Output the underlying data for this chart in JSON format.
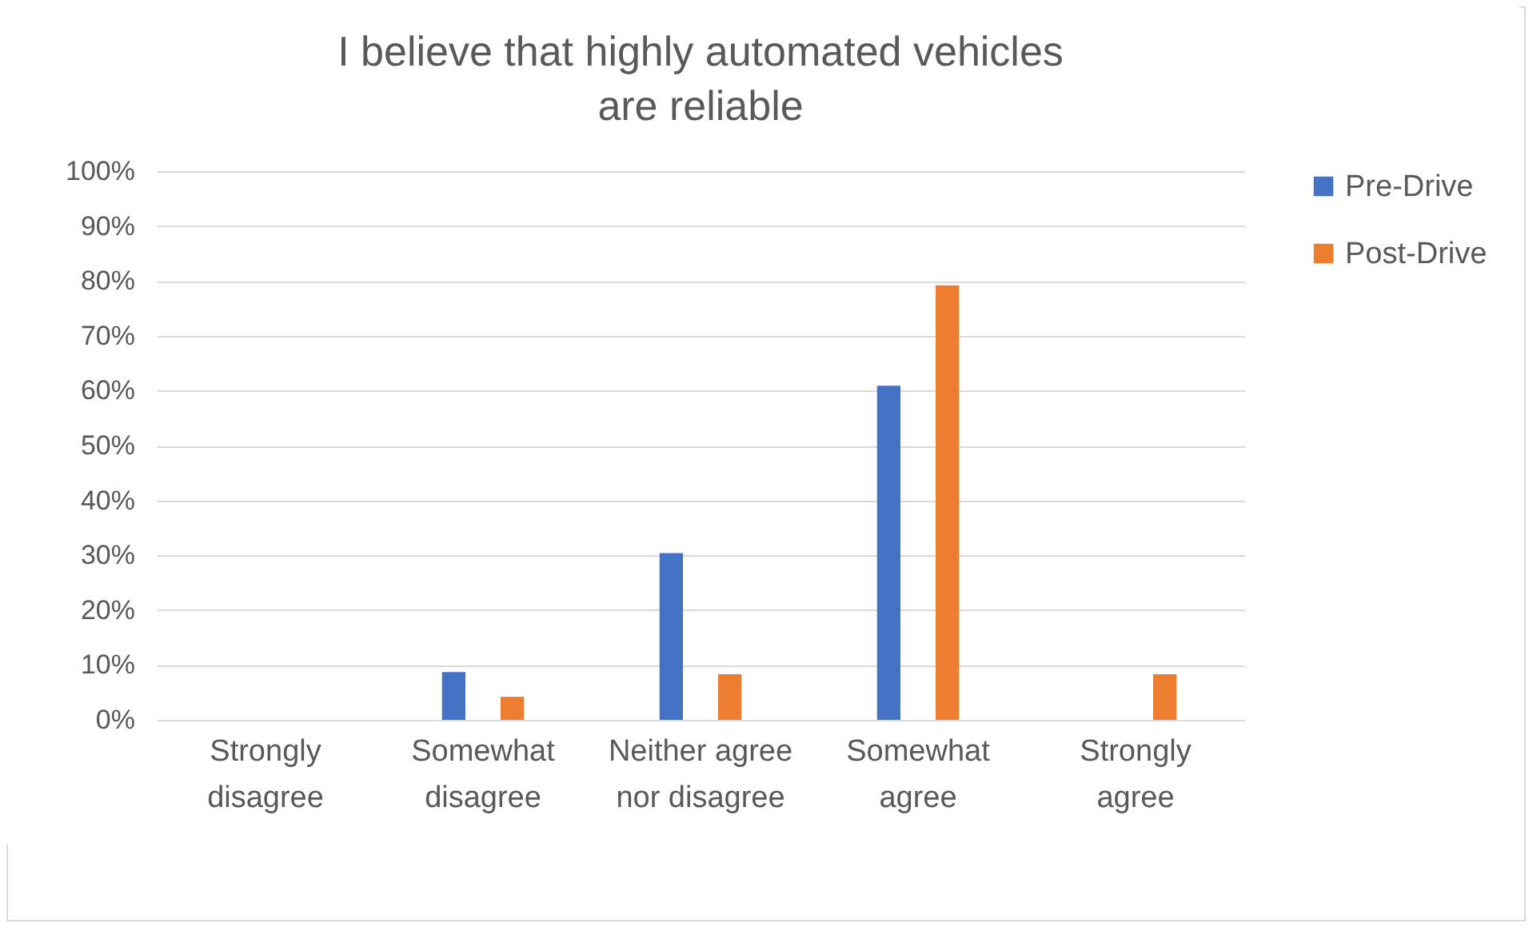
{
  "chart_data": {
    "type": "bar",
    "title": "I believe that highly automated vehicles are reliable",
    "categories": [
      "Strongly disagree",
      "Somewhat disagree",
      "Neither agree nor disagree",
      "Somewhat agree",
      "Strongly agree"
    ],
    "series": [
      {
        "name": "Pre-Drive",
        "color": "#4472c4",
        "values": [
          0,
          8.7,
          30.4,
          60.9,
          0
        ]
      },
      {
        "name": "Post-Drive",
        "color": "#ed7d31",
        "values": [
          0,
          4.2,
          8.3,
          79.2,
          8.3
        ]
      }
    ],
    "ylim": [
      0,
      100
    ],
    "yticks": [
      {
        "value": 0,
        "label": "0%"
      },
      {
        "value": 10,
        "label": "10%"
      },
      {
        "value": 20,
        "label": "20%"
      },
      {
        "value": 30,
        "label": "30%"
      },
      {
        "value": 40,
        "label": "40%"
      },
      {
        "value": 50,
        "label": "50%"
      },
      {
        "value": 60,
        "label": "60%"
      },
      {
        "value": 70,
        "label": "70%"
      },
      {
        "value": 80,
        "label": "80%"
      },
      {
        "value": 90,
        "label": "90%"
      },
      {
        "value": 100,
        "label": "100%"
      }
    ],
    "grid": "y",
    "legend": "right"
  }
}
